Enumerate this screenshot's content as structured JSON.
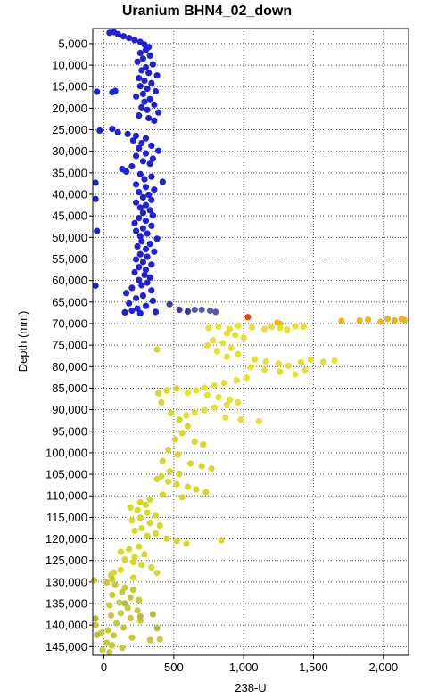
{
  "chart_data": {
    "type": "scatter",
    "title": "Uranium BHN4_02_down",
    "xlabel": "238-U",
    "ylabel": "Depth (mm)",
    "xlim": [
      -80,
      2180
    ],
    "ylim": [
      1500,
      147000
    ],
    "y_inverted": true,
    "grid": true,
    "grid_style": "dotted",
    "x_ticks": [
      0,
      500,
      1000,
      1500,
      2000
    ],
    "x_tick_labels": [
      "0",
      "500",
      "1,000",
      "1,500",
      "2,000"
    ],
    "y_ticks": [
      5000,
      10000,
      15000,
      20000,
      25000,
      30000,
      35000,
      40000,
      45000,
      50000,
      55000,
      60000,
      65000,
      70000,
      75000,
      80000,
      85000,
      90000,
      95000,
      100000,
      105000,
      110000,
      115000,
      120000,
      125000,
      130000,
      135000,
      140000,
      145000
    ],
    "y_tick_labels": [
      "5,000",
      "10,000",
      "15,000",
      "20,000",
      "25,000",
      "30,000",
      "35,000",
      "40,000",
      "45,000",
      "50,000",
      "55,000",
      "60,000",
      "65,000",
      "70,000",
      "75,000",
      "80,000",
      "85,000",
      "90,000",
      "95,000",
      "100,000",
      "105,000",
      "110,000",
      "115,000",
      "120,000",
      "125,000",
      "130,000",
      "135,000",
      "140,000",
      "145,000"
    ],
    "colors": {
      "blue": "#2020d8",
      "dark_blue": "#3a3aa0",
      "steel_blue": "#5a5aa8",
      "yellow": "#d8d828",
      "yellow_light": "#e8e030",
      "yellow_olive": "#c8c838",
      "olive": "#b8b848",
      "orange": "#f0b020",
      "red": "#f04010"
    },
    "series": [
      {
        "color_key": "blue",
        "points": [
          [
            40,
            2500
          ],
          [
            70,
            2300
          ],
          [
            100,
            2800
          ],
          [
            140,
            3300
          ],
          [
            180,
            3700
          ],
          [
            220,
            4200
          ],
          [
            260,
            4600
          ],
          [
            290,
            5200
          ],
          [
            320,
            5800
          ],
          [
            300,
            6500
          ],
          [
            260,
            7200
          ],
          [
            330,
            7800
          ],
          [
            280,
            8500
          ],
          [
            240,
            9200
          ],
          [
            350,
            9800
          ],
          [
            300,
            10500
          ],
          [
            270,
            11200
          ],
          [
            320,
            11800
          ],
          [
            380,
            12400
          ],
          [
            250,
            13000
          ],
          [
            290,
            13600
          ],
          [
            340,
            14200
          ],
          [
            260,
            14900
          ],
          [
            310,
            15500
          ],
          [
            370,
            16100
          ],
          [
            280,
            16700
          ],
          [
            230,
            17300
          ],
          [
            330,
            17900
          ],
          [
            290,
            18500
          ],
          [
            360,
            19200
          ],
          [
            270,
            19800
          ],
          [
            310,
            20400
          ],
          [
            390,
            21000
          ],
          [
            250,
            21700
          ],
          [
            320,
            22300
          ],
          [
            360,
            22900
          ],
          [
            -50,
            16200
          ],
          [
            60,
            16300
          ],
          [
            80,
            16000
          ],
          [
            -30,
            25200
          ],
          [
            60,
            24800
          ],
          [
            100,
            25600
          ],
          [
            170,
            26000
          ],
          [
            230,
            26400
          ],
          [
            300,
            27000
          ],
          [
            210,
            27500
          ],
          [
            270,
            28100
          ],
          [
            340,
            28700
          ],
          [
            250,
            29300
          ],
          [
            390,
            29900
          ],
          [
            300,
            30500
          ],
          [
            230,
            31100
          ],
          [
            350,
            31700
          ],
          [
            280,
            32300
          ],
          [
            330,
            32900
          ],
          [
            200,
            33500
          ],
          [
            130,
            34100
          ],
          [
            160,
            34700
          ],
          [
            260,
            35300
          ],
          [
            340,
            35900
          ],
          [
            290,
            36500
          ],
          [
            420,
            37100
          ],
          [
            230,
            37700
          ],
          [
            300,
            38300
          ],
          [
            360,
            38900
          ],
          [
            250,
            39500
          ],
          [
            320,
            40100
          ],
          [
            280,
            40700
          ],
          [
            340,
            41300
          ],
          [
            230,
            41900
          ],
          [
            300,
            42500
          ],
          [
            260,
            43100
          ],
          [
            330,
            43700
          ],
          [
            280,
            44300
          ],
          [
            350,
            44900
          ],
          [
            250,
            45500
          ],
          [
            300,
            46100
          ],
          [
            220,
            46700
          ],
          [
            340,
            47300
          ],
          [
            280,
            47900
          ],
          [
            230,
            48500
          ],
          [
            310,
            49100
          ],
          [
            260,
            49700
          ],
          [
            380,
            50300
          ],
          [
            270,
            50900
          ],
          [
            330,
            51500
          ],
          [
            240,
            52100
          ],
          [
            300,
            52700
          ],
          [
            360,
            53300
          ],
          [
            260,
            53900
          ],
          [
            310,
            54500
          ],
          [
            230,
            55100
          ],
          [
            280,
            55700
          ],
          [
            340,
            56300
          ],
          [
            250,
            56900
          ],
          [
            300,
            57500
          ],
          [
            220,
            58100
          ],
          [
            290,
            58700
          ],
          [
            330,
            59300
          ],
          [
            250,
            59900
          ],
          [
            310,
            60500
          ],
          [
            270,
            61100
          ],
          [
            200,
            61700
          ],
          [
            340,
            62300
          ],
          [
            160,
            62900
          ],
          [
            280,
            63500
          ],
          [
            230,
            64100
          ],
          [
            350,
            64700
          ],
          [
            180,
            65300
          ],
          [
            300,
            65900
          ],
          [
            240,
            66500
          ],
          [
            200,
            67000
          ],
          [
            150,
            67400
          ],
          [
            260,
            67600
          ],
          [
            370,
            67300
          ],
          [
            -60,
            37300
          ],
          [
            -60,
            41100
          ],
          [
            -50,
            48500
          ],
          [
            -60,
            61200
          ]
        ]
      },
      {
        "color_key": "dark_blue",
        "points": [
          [
            470,
            65500
          ],
          [
            540,
            66800
          ],
          [
            600,
            67200
          ]
        ]
      },
      {
        "color_key": "steel_blue",
        "points": [
          [
            650,
            66800
          ],
          [
            700,
            66800
          ],
          [
            760,
            67000
          ],
          [
            800,
            67300
          ]
        ]
      },
      {
        "color_key": "red",
        "points": [
          [
            1030,
            68500
          ]
        ]
      },
      {
        "color_key": "orange",
        "points": [
          [
            1240,
            69800
          ],
          [
            1260,
            70100
          ],
          [
            1700,
            69400
          ],
          [
            1830,
            69300
          ],
          [
            1890,
            69100
          ],
          [
            1980,
            69600
          ],
          [
            2030,
            68900
          ],
          [
            2080,
            69300
          ],
          [
            2130,
            68900
          ],
          [
            2150,
            69200
          ]
        ]
      },
      {
        "color_key": "yellow_light",
        "points": [
          [
            750,
            71000
          ],
          [
            820,
            70700
          ],
          [
            900,
            71300
          ],
          [
            960,
            70500
          ],
          [
            1060,
            70900
          ],
          [
            1150,
            71300
          ],
          [
            1200,
            70800
          ],
          [
            1260,
            71000
          ],
          [
            1310,
            71400
          ],
          [
            1370,
            70600
          ],
          [
            1430,
            70700
          ],
          [
            880,
            72300
          ],
          [
            940,
            72700
          ],
          [
            1000,
            73300
          ],
          [
            780,
            73900
          ],
          [
            850,
            74500
          ],
          [
            740,
            75100
          ],
          [
            910,
            75700
          ],
          [
            810,
            76400
          ],
          [
            960,
            77100
          ],
          [
            880,
            77700
          ],
          [
            1080,
            78300
          ],
          [
            1160,
            78800
          ],
          [
            1250,
            79300
          ],
          [
            1320,
            79800
          ],
          [
            1410,
            79000
          ],
          [
            1480,
            78400
          ],
          [
            1570,
            78900
          ],
          [
            1650,
            78600
          ],
          [
            1050,
            80100
          ],
          [
            1150,
            80700
          ],
          [
            1260,
            81200
          ],
          [
            1370,
            81800
          ],
          [
            1440,
            80800
          ],
          [
            1020,
            82600
          ],
          [
            950,
            83200
          ],
          [
            860,
            83800
          ],
          [
            790,
            84400
          ],
          [
            720,
            84900
          ],
          [
            660,
            85500
          ],
          [
            600,
            86100
          ],
          [
            740,
            86600
          ],
          [
            820,
            87100
          ],
          [
            900,
            87700
          ],
          [
            960,
            88300
          ],
          [
            880,
            88900
          ],
          [
            790,
            89500
          ],
          [
            720,
            90100
          ],
          [
            650,
            90700
          ],
          [
            590,
            91300
          ],
          [
            870,
            91800
          ],
          [
            980,
            92300
          ],
          [
            1110,
            92700
          ]
        ]
      },
      {
        "color_key": "yellow",
        "points": [
          [
            380,
            76000
          ],
          [
            390,
            86200
          ],
          [
            450,
            85500
          ],
          [
            520,
            85100
          ],
          [
            410,
            88300
          ],
          [
            480,
            90800
          ],
          [
            540,
            92300
          ],
          [
            600,
            93800
          ],
          [
            560,
            95400
          ],
          [
            510,
            96900
          ],
          [
            650,
            97400
          ],
          [
            710,
            98100
          ],
          [
            460,
            99300
          ],
          [
            530,
            100400
          ],
          [
            420,
            101900
          ],
          [
            620,
            102500
          ],
          [
            700,
            103100
          ],
          [
            770,
            103700
          ],
          [
            470,
            104300
          ],
          [
            540,
            104900
          ],
          [
            410,
            105500
          ],
          [
            380,
            106100
          ],
          [
            460,
            106700
          ],
          [
            520,
            107300
          ],
          [
            600,
            107900
          ],
          [
            660,
            108500
          ],
          [
            730,
            109100
          ],
          [
            420,
            109700
          ],
          [
            560,
            110300
          ],
          [
            330,
            110900
          ],
          [
            260,
            111500
          ],
          [
            300,
            112100
          ],
          [
            190,
            112700
          ],
          [
            240,
            113300
          ],
          [
            310,
            113900
          ],
          [
            370,
            114500
          ],
          [
            260,
            115100
          ],
          [
            200,
            115700
          ],
          [
            330,
            116300
          ],
          [
            400,
            116900
          ],
          [
            270,
            117500
          ],
          [
            220,
            118100
          ],
          [
            370,
            118700
          ],
          [
            310,
            119300
          ],
          [
            450,
            119900
          ],
          [
            520,
            120500
          ],
          [
            590,
            121100
          ],
          [
            840,
            120300
          ],
          [
            250,
            121800
          ],
          [
            180,
            122400
          ],
          [
            120,
            123000
          ],
          [
            290,
            123600
          ],
          [
            220,
            124200
          ],
          [
            150,
            124800
          ],
          [
            210,
            125400
          ],
          [
            270,
            126000
          ],
          [
            340,
            126600
          ],
          [
            120,
            127200
          ],
          [
            70,
            127800
          ],
          [
            380,
            127900
          ],
          [
            50,
            128400
          ],
          [
            210,
            129000
          ]
        ]
      },
      {
        "color_key": "yellow_olive",
        "points": [
          [
            60,
            129300
          ],
          [
            -70,
            129600
          ],
          [
            20,
            130100
          ],
          [
            80,
            130700
          ],
          [
            150,
            131300
          ],
          [
            210,
            131800
          ],
          [
            130,
            132400
          ],
          [
            60,
            133000
          ],
          [
            190,
            133600
          ],
          [
            250,
            134200
          ],
          [
            110,
            134800
          ],
          [
            40,
            135400
          ],
          [
            170,
            136000
          ],
          [
            240,
            136600
          ],
          [
            120,
            137200
          ],
          [
            50,
            137800
          ],
          [
            190,
            138400
          ],
          [
            260,
            139000
          ],
          [
            90,
            139600
          ],
          [
            -60,
            140000
          ],
          [
            140,
            140600
          ],
          [
            30,
            141200
          ],
          [
            -20,
            141800
          ],
          [
            70,
            142400
          ],
          [
            200,
            142900
          ],
          [
            330,
            143500
          ],
          [
            400,
            143300
          ],
          [
            20,
            144100
          ],
          [
            60,
            144700
          ],
          [
            130,
            145300
          ],
          [
            -10,
            145800
          ],
          [
            40,
            146300
          ]
        ]
      },
      {
        "color_key": "olive",
        "points": [
          [
            150,
            135000
          ],
          [
            260,
            138000
          ],
          [
            350,
            137500
          ],
          [
            380,
            140700
          ],
          [
            -50,
            142300
          ],
          [
            -60,
            138500
          ]
        ]
      }
    ]
  }
}
